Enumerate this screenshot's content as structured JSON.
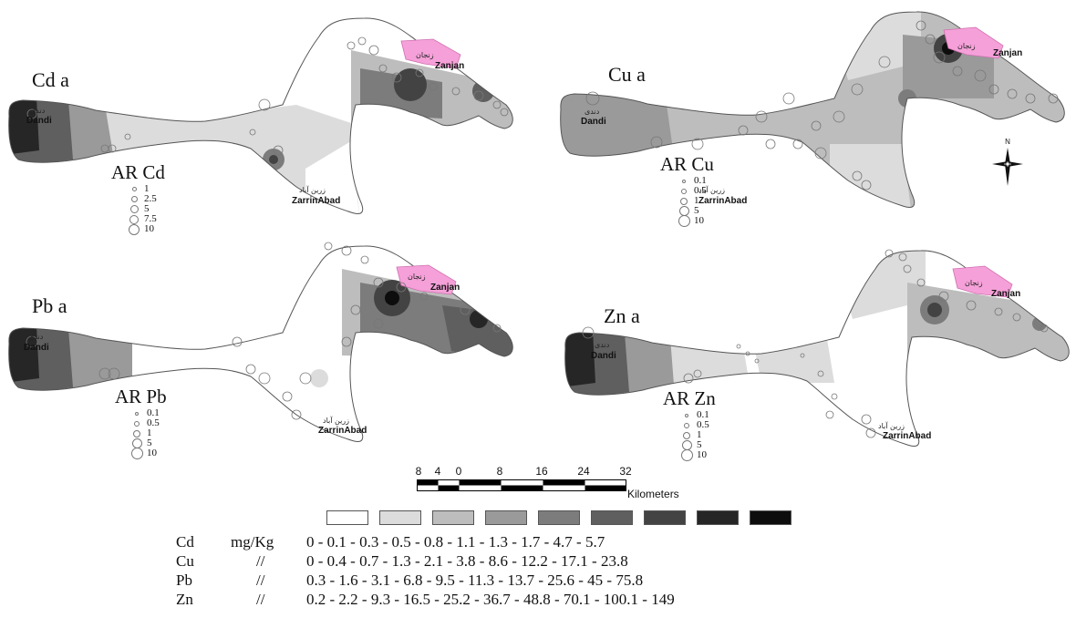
{
  "panels": [
    {
      "id": "cd",
      "title": "Cd a",
      "legend_title": "AR Cd",
      "legend_values": [
        "1",
        "2.5",
        "5",
        "7.5",
        "10"
      ]
    },
    {
      "id": "cu",
      "title": "Cu a",
      "legend_title": "AR Cu",
      "legend_values": [
        "0.1",
        "0.5",
        "1",
        "5",
        "10"
      ]
    },
    {
      "id": "pb",
      "title": "Pb a",
      "legend_title": "AR Pb",
      "legend_values": [
        "0.1",
        "0.5",
        "1",
        "5",
        "10"
      ]
    },
    {
      "id": "zn",
      "title": "Zn a",
      "legend_title": "AR Zn",
      "legend_values": [
        "0.1",
        "0.5",
        "1",
        "5",
        "10"
      ]
    }
  ],
  "places": {
    "zanjan": "Zanjan",
    "zanjan_fa": "زنجان",
    "dandi": "Dandi",
    "dandi_fa": "دندی",
    "zarrinabad": "ZarrinAbad",
    "zarrinabad_fa": "زرین آباد"
  },
  "north_label": "N",
  "scale": {
    "ticks": [
      "8",
      "4",
      "0",
      "8",
      "16",
      "24",
      "32"
    ],
    "unit": "Kilometers"
  },
  "classes": {
    "colors": [
      "#ffffff",
      "#dcdcdc",
      "#bdbdbd",
      "#9a9a9a",
      "#7c7c7c",
      "#5f5f5f",
      "#434343",
      "#262626",
      "#0d0d0d"
    ],
    "rows": [
      {
        "element": "Cd",
        "unit": "mg/Kg",
        "values": "0   - 0.1 - 0.3 -  0.5  -  0.8 - 1.1 -  1.3  - 1.7 -  4.7 -  5.7"
      },
      {
        "element": "Cu",
        "unit": "//",
        "values": "0   - 0.4 - 0.7 -  1.3  -  2.1 - 3.8 -  8.6 - 12.2 - 17.1 - 23.8"
      },
      {
        "element": "Pb",
        "unit": "//",
        "values": "0.3 - 1.6 - 3.1 -  6.8  -  9.5 - 11.3 - 13.7 - 25.6 -  45  - 75.8"
      },
      {
        "element": "Zn",
        "unit": "//",
        "values": "0.2 - 2.2 - 9.3 - 16.5 - 25.2 - 36.7 - 48.8 - 70.1 - 100.1 - 149"
      }
    ]
  }
}
